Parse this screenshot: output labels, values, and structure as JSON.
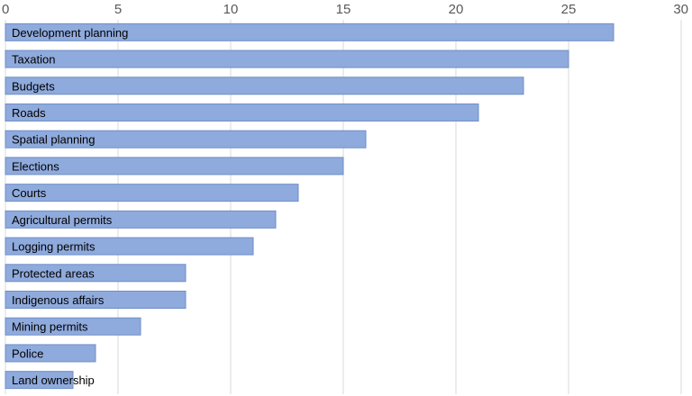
{
  "chart_data": {
    "type": "bar",
    "orientation": "horizontal",
    "categories": [
      "Development planning",
      "Taxation",
      "Budgets",
      "Roads",
      "Spatial planning",
      "Elections",
      "Courts",
      "Agricultural permits",
      "Logging permits",
      "Protected areas",
      "Indigenous affairs",
      "Mining permits",
      "Police",
      "Land ownership"
    ],
    "values": [
      27,
      25,
      23,
      21,
      16,
      15,
      13,
      12,
      11,
      8,
      8,
      6,
      4,
      3
    ],
    "xlim": [
      0,
      30
    ],
    "x_ticks": [
      "0",
      "5",
      "10",
      "15",
      "20",
      "25",
      "30"
    ],
    "axis_position": "top",
    "grid": true,
    "legend": "none",
    "bar_color": "#8faadc",
    "bar_edge_color": "#6f8fc9"
  }
}
